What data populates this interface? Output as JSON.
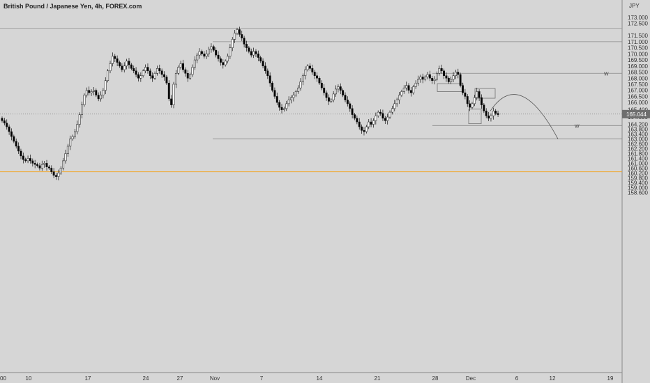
{
  "chart_data": {
    "type": "candlestick",
    "title": "British Pound / Japanese Yen, 4h, FOREX.com",
    "ylabel": "JPY",
    "ylim": [
      158.6,
      173.6
    ],
    "y_ticks": [
      "173.000",
      "172.500",
      "171.500",
      "171.000",
      "170.500",
      "170.000",
      "169.500",
      "169.000",
      "168.500",
      "168.000",
      "167.500",
      "167.000",
      "166.500",
      "166.000",
      "165.400",
      "164.800",
      "164.200",
      "163.800",
      "163.400",
      "163.000",
      "162.600",
      "162.200",
      "161.800",
      "161.400",
      "161.000",
      "160.600",
      "160.200",
      "159.800",
      "159.400",
      "159.000",
      "158.600"
    ],
    "x_ticks": [
      "00",
      "10",
      "17",
      "24",
      "27",
      "Nov",
      "7",
      "14",
      "21",
      "28",
      "Dec",
      "6",
      "12",
      "19"
    ],
    "current_price": "165.044",
    "colors": {
      "background": "#d6d6d6",
      "up": "#ffffff",
      "down": "#000000",
      "grid": "#9a9a9a",
      "highlight": "#f0a830"
    },
    "annotation_labels": [
      "W",
      "W"
    ],
    "closes": [
      164.5,
      164.3,
      164.0,
      163.6,
      163.2,
      162.8,
      162.4,
      162.0,
      161.6,
      161.3,
      161.2,
      161.4,
      161.2,
      161.0,
      160.9,
      160.8,
      160.6,
      160.9,
      161.0,
      160.7,
      160.6,
      160.3,
      160.0,
      159.9,
      160.2,
      160.6,
      161.2,
      161.8,
      162.4,
      163.0,
      163.2,
      163.6,
      164.2,
      165.0,
      165.8,
      166.6,
      167.0,
      166.8,
      166.9,
      167.0,
      166.6,
      166.3,
      166.6,
      167.0,
      167.8,
      168.6,
      169.2,
      169.8,
      169.6,
      169.3,
      169.0,
      168.7,
      169.0,
      169.4,
      169.1,
      168.8,
      168.6,
      168.3,
      168.0,
      168.2,
      168.6,
      168.9,
      168.6,
      168.2,
      168.0,
      168.4,
      168.8,
      168.6,
      168.3,
      168.1,
      167.6,
      166.3,
      165.8,
      167.5,
      168.4,
      168.9,
      169.2,
      168.7,
      168.4,
      168.0,
      168.3,
      168.9,
      169.5,
      169.9,
      170.2,
      170.0,
      169.8,
      170.0,
      170.4,
      170.6,
      170.3,
      169.9,
      169.6,
      169.3,
      169.1,
      169.4,
      169.8,
      170.5,
      171.2,
      171.7,
      172.0,
      171.6,
      171.3,
      170.8,
      170.5,
      170.2,
      169.9,
      170.2,
      170.0,
      169.7,
      169.4,
      169.0,
      168.6,
      168.2,
      167.6,
      167.0,
      166.5,
      166.0,
      165.6,
      165.4,
      165.5,
      165.9,
      166.2,
      166.4,
      166.6,
      166.9,
      167.2,
      167.7,
      168.2,
      168.7,
      169.0,
      168.8,
      168.5,
      168.2,
      168.0,
      167.6,
      167.2,
      166.8,
      166.4,
      166.1,
      166.2,
      166.7,
      167.1,
      167.3,
      167.0,
      166.6,
      166.2,
      165.9,
      165.5,
      165.0,
      164.7,
      164.4,
      164.0,
      163.7,
      163.6,
      164.0,
      164.4,
      164.2,
      164.5,
      164.9,
      165.2,
      165.1,
      164.7,
      164.5,
      164.8,
      165.2,
      165.5,
      165.9,
      166.2,
      166.6,
      166.9,
      167.2,
      167.4,
      167.0,
      166.8,
      167.3,
      167.6,
      167.9,
      168.1,
      167.9,
      168.1,
      168.3,
      168.0,
      167.8,
      167.9,
      168.4,
      168.8,
      168.6,
      168.2,
      168.0,
      167.7,
      167.9,
      168.2,
      168.5,
      168.3,
      167.4,
      166.8,
      166.5,
      165.9,
      165.6,
      165.9,
      166.4,
      166.9,
      166.4,
      165.8,
      165.3,
      164.9,
      164.7,
      164.9,
      165.3,
      165.1,
      165.0
    ]
  }
}
